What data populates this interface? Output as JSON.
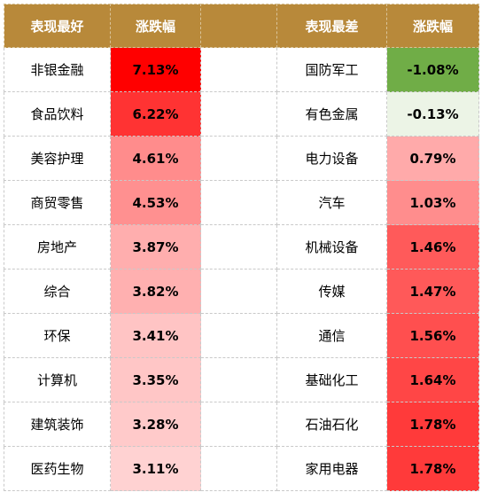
{
  "headers": {
    "best_label": "表现最好",
    "best_change_label": "涨跌幅",
    "worst_label": "表现最差",
    "worst_change_label": "涨跌幅"
  },
  "rows": [
    {
      "best_name": "非银金融",
      "best_value": "7.13%",
      "best_color": "#ff0000",
      "worst_name": "国防军工",
      "worst_value": "-1.08%",
      "worst_color": "#70ad47"
    },
    {
      "best_name": "食品饮料",
      "best_value": "6.22%",
      "best_color": "#ff3333",
      "worst_name": "有色金属",
      "worst_value": "-0.13%",
      "worst_color": "#ecf4e6"
    },
    {
      "best_name": "美容护理",
      "best_value": "4.61%",
      "best_color": "#ff8c8c",
      "worst_name": "电力设备",
      "worst_value": "0.79%",
      "worst_color": "#ffaaaa"
    },
    {
      "best_name": "商贸零售",
      "best_value": "4.53%",
      "best_color": "#ff9090",
      "worst_name": "汽车",
      "worst_value": "1.03%",
      "worst_color": "#ff8d8d"
    },
    {
      "best_name": "房地产",
      "best_value": "3.87%",
      "best_color": "#ffaeae",
      "worst_name": "机械设备",
      "worst_value": "1.46%",
      "worst_color": "#ff5a5a"
    },
    {
      "best_name": "综合",
      "best_value": "3.82%",
      "best_color": "#ffb0b0",
      "worst_name": "传媒",
      "worst_value": "1.47%",
      "worst_color": "#ff5959"
    },
    {
      "best_name": "环保",
      "best_value": "3.41%",
      "best_color": "#ffc4c4",
      "worst_name": "通信",
      "worst_value": "1.56%",
      "worst_color": "#ff4f4f"
    },
    {
      "best_name": "计算机",
      "best_value": "3.35%",
      "best_color": "#ffc6c6",
      "worst_name": "基础化工",
      "worst_value": "1.64%",
      "worst_color": "#ff4646"
    },
    {
      "best_name": "建筑装饰",
      "best_value": "3.28%",
      "best_color": "#ffcaca",
      "worst_name": "石油石化",
      "worst_value": "1.78%",
      "worst_color": "#ff3a3a"
    },
    {
      "best_name": "医药生物",
      "best_value": "3.11%",
      "best_color": "#ffd2d2",
      "worst_name": "家用电器",
      "worst_value": "1.78%",
      "worst_color": "#ff3a3a"
    }
  ]
}
